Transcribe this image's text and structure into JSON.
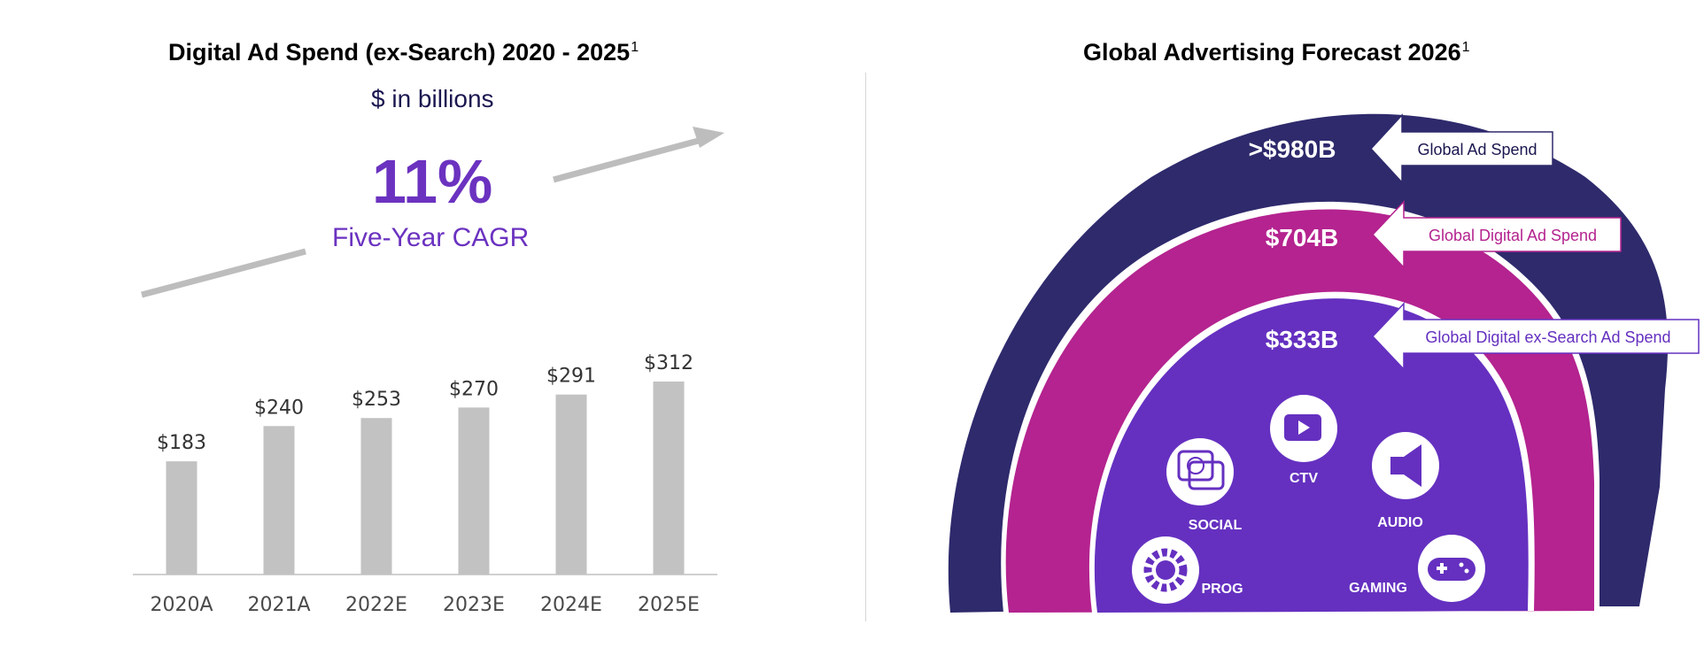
{
  "left_chart": {
    "title": "Digital Ad Spend (ex-Search) 2020 - 2025",
    "title_footnote": "1",
    "subtitle": "$ in billions",
    "cagr_value": "11%",
    "cagr_label": "Five-Year CAGR"
  },
  "right_chart": {
    "title": "Global Advertising Forecast 2026",
    "title_footnote": "1",
    "rings": [
      {
        "value_label": ">$980B",
        "callout": "Global Ad Spend"
      },
      {
        "value_label": "$704B",
        "callout": "Global Digital Ad Spend"
      },
      {
        "value_label": "$333B",
        "callout": "Global Digital ex-Search Ad Spend"
      }
    ],
    "channels": [
      {
        "label": "CTV",
        "icon": "ctv-play-icon"
      },
      {
        "label": "SOCIAL",
        "icon": "social-chat-icon"
      },
      {
        "label": "AUDIO",
        "icon": "megaphone-icon"
      },
      {
        "label": "PROG",
        "icon": "gear-cycle-icon"
      },
      {
        "label": "GAMING",
        "icon": "gamepad-icon"
      }
    ]
  },
  "colors": {
    "bar": "#c2c2c2",
    "accent_purple": "#6b32c0",
    "outer_ring": "#2e2a6c",
    "middle_ring": "#b4238f",
    "inner_ring": "#6530c0",
    "arrow": "#bdbdbd"
  },
  "chart_data": [
    {
      "type": "bar",
      "title": "Digital Ad Spend (ex-Search) 2020 - 2025",
      "subtitle": "$ in billions",
      "categories": [
        "2020A",
        "2021A",
        "2022E",
        "2023E",
        "2024E",
        "2025E"
      ],
      "values": [
        183,
        240,
        253,
        270,
        291,
        312
      ],
      "data_labels": [
        "$183",
        "$240",
        "$253",
        "$270",
        "$291",
        "$312"
      ],
      "ylim": [
        0,
        360
      ],
      "grid": false,
      "annotation": "11% Five-Year CAGR"
    },
    {
      "type": "nested-semicircle",
      "title": "Global Advertising Forecast 2026",
      "categories": [
        "Global Ad Spend",
        "Global Digital Ad Spend",
        "Global Digital ex-Search Ad Spend"
      ],
      "values": [
        980,
        704,
        333
      ],
      "data_labels": [
        ">$980B",
        "$704B",
        "$333B"
      ]
    }
  ]
}
